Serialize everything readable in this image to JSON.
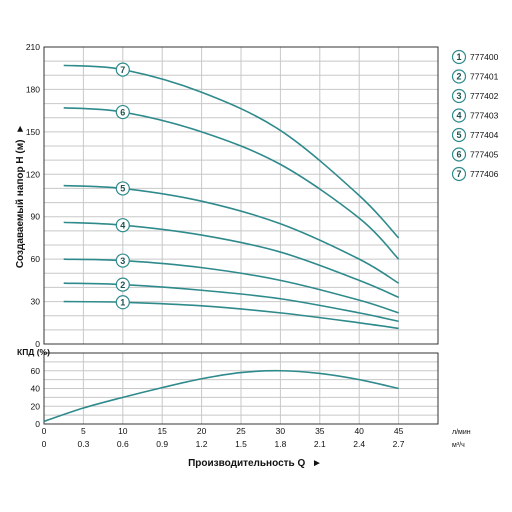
{
  "chart_data": [
    {
      "type": "line",
      "ylabel": "Создаваемый напор H (м)",
      "ylabel_arrow": "►",
      "ylim": [
        0,
        210
      ],
      "yticks": [
        0,
        30,
        60,
        90,
        120,
        150,
        180,
        210
      ],
      "xlim": [
        0,
        50
      ],
      "grid": true,
      "series": [
        {
          "name": "777400",
          "badge": "1",
          "x": [
            2.5,
            10,
            20,
            30,
            40,
            45
          ],
          "y": [
            30,
            29.5,
            27,
            22,
            15,
            11
          ]
        },
        {
          "name": "777401",
          "badge": "2",
          "x": [
            2.5,
            10,
            20,
            30,
            40,
            45
          ],
          "y": [
            43,
            42,
            38,
            32,
            22,
            16
          ]
        },
        {
          "name": "777402",
          "badge": "3",
          "x": [
            2.5,
            10,
            20,
            30,
            40,
            45
          ],
          "y": [
            60,
            59,
            54,
            45,
            31,
            22
          ]
        },
        {
          "name": "777403",
          "badge": "4",
          "x": [
            2.5,
            10,
            20,
            30,
            40,
            45
          ],
          "y": [
            86,
            84,
            77,
            65,
            45,
            33
          ]
        },
        {
          "name": "777404",
          "badge": "5",
          "x": [
            2.5,
            10,
            20,
            30,
            40,
            45
          ],
          "y": [
            112,
            110,
            101,
            85,
            60,
            43
          ]
        },
        {
          "name": "777405",
          "badge": "6",
          "x": [
            2.5,
            10,
            20,
            30,
            40,
            45
          ],
          "y": [
            167,
            164,
            150,
            127,
            89,
            60
          ]
        },
        {
          "name": "777406",
          "badge": "7",
          "x": [
            2.5,
            10,
            20,
            30,
            40,
            45
          ],
          "y": [
            197,
            194,
            178,
            151,
            105,
            75
          ]
        }
      ]
    },
    {
      "type": "line",
      "ylabel": "КПД (%)",
      "ylim": [
        0,
        80
      ],
      "yticks": [
        0,
        20,
        40,
        60
      ],
      "xlim": [
        0,
        50
      ],
      "grid": true,
      "series": [
        {
          "x": [
            0,
            5,
            10,
            15,
            20,
            25,
            30,
            35,
            40,
            45
          ],
          "y": [
            3,
            18,
            30,
            41,
            51,
            58,
            60,
            57,
            50,
            40
          ]
        }
      ]
    }
  ],
  "x_axis": {
    "ticks_lpm": [
      "0",
      "5",
      "10",
      "15",
      "20",
      "25",
      "30",
      "35",
      "40",
      "45"
    ],
    "ticks_m3h": [
      "0",
      "0.3",
      "0.6",
      "0.9",
      "1.2",
      "1.5",
      "1.8",
      "2.1",
      "2.4",
      "2.7"
    ],
    "unit_lpm": "л/мин",
    "unit_m3h": "м³/ч",
    "title": "Производительность Q",
    "title_arrow": "►"
  },
  "colors": {
    "curve": "#2f8a8c",
    "badge_border": "#2f8a8c",
    "grid": "#c8c8c8",
    "frame": "#333333"
  }
}
